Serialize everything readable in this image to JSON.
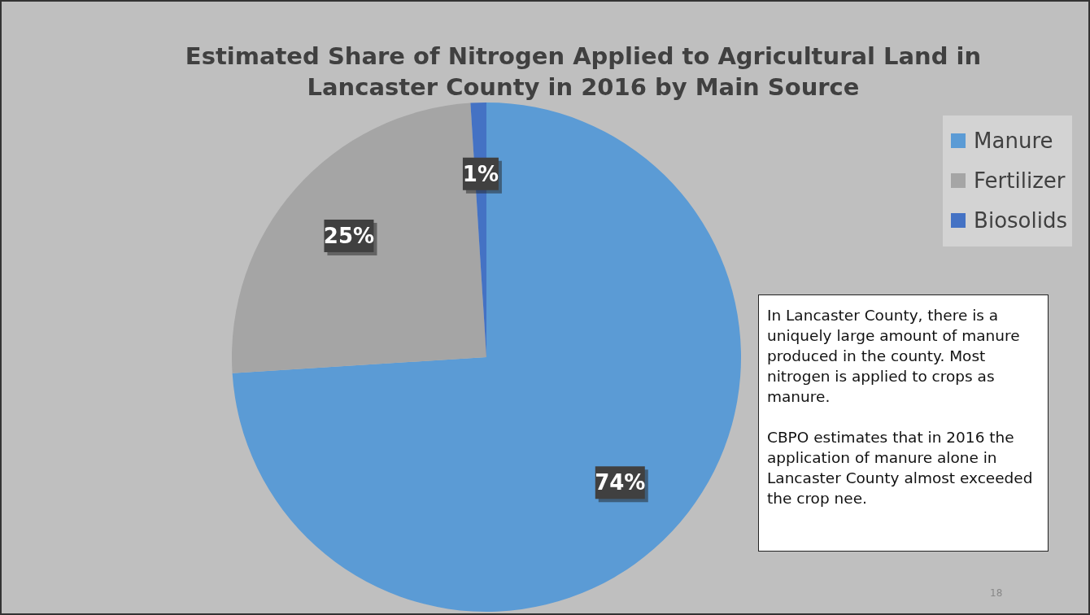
{
  "chart_data": {
    "type": "pie",
    "title": "Estimated Share of Nitrogen Applied to Agricultural Land in Lancaster County in 2016 by Main Source",
    "categories": [
      "Manure",
      "Fertilizer",
      "Biosolids"
    ],
    "values": [
      74,
      25,
      1
    ],
    "colors": [
      "#5b9bd5",
      "#a5a5a5",
      "#4472c4"
    ],
    "value_labels": [
      "74%",
      "25%",
      "1%"
    ],
    "legend": "top right",
    "annotations": [
      "In Lancaster County, there is a uniquely large amount of manure produced in the county. Most nitrogen is applied to crops as manure.\n\nCBPO estimates that in 2016 the application of manure alone in Lancaster County almost exceeded the crop nee.",
      "18"
    ]
  }
}
